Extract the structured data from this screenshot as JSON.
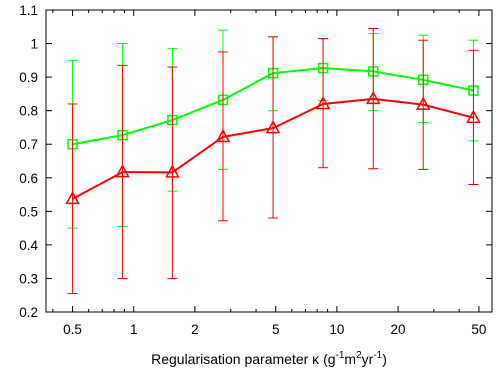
{
  "chart_data": {
    "type": "line",
    "xscale": "log",
    "xlabel": "Regularisation parameter κ (g-1m2yr-1)",
    "xlabel_parts": {
      "prefix": "Regularisation parameter κ (g",
      "sup1": "-1",
      "mid1": "m",
      "sup2": "2",
      "mid2": "yr",
      "sup3": "-1",
      "suffix": ")"
    },
    "ylabel": "",
    "xlim": [
      0.37,
      58
    ],
    "ylim": [
      0.2,
      1.1
    ],
    "xticks": [
      0.5,
      1,
      2,
      5,
      10,
      20,
      50
    ],
    "xtick_labels": [
      "0.5",
      "1",
      "2",
      "5",
      "10",
      "20",
      "50"
    ],
    "yticks": [
      0.2,
      0.3,
      0.4,
      0.5,
      0.6,
      0.7,
      0.8,
      0.9,
      1.0,
      1.1
    ],
    "ytick_labels": [
      "0.2",
      "0.3",
      "0.4",
      "0.5",
      "0.6",
      "0.7",
      "0.8",
      "0.9",
      "1",
      "1.1"
    ],
    "grid": false,
    "x": [
      0.5,
      0.88,
      1.55,
      2.75,
      4.85,
      8.55,
      15.1,
      26.6,
      47
    ],
    "series": [
      {
        "color": "#00ff00",
        "marker": "square",
        "values": [
          0.7,
          0.727,
          0.772,
          0.832,
          0.912,
          0.927,
          0.917,
          0.892,
          0.86
        ],
        "err_low": [
          0.45,
          0.455,
          0.56,
          0.625,
          0.8,
          0.83,
          0.8,
          0.765,
          0.71
        ],
        "err_high": [
          0.95,
          1.0,
          0.985,
          1.04,
          1.02,
          1.015,
          1.03,
          1.025,
          1.01
        ]
      },
      {
        "color": "#ff0000",
        "marker": "triangle",
        "values": [
          0.537,
          0.617,
          0.616,
          0.722,
          0.748,
          0.82,
          0.835,
          0.818,
          0.779
        ],
        "err_low": [
          0.255,
          0.3,
          0.3,
          0.472,
          0.48,
          0.63,
          0.627,
          0.625,
          0.58
        ],
        "err_high": [
          0.82,
          0.935,
          0.93,
          0.975,
          1.02,
          1.015,
          1.045,
          1.01,
          0.98
        ]
      }
    ]
  }
}
